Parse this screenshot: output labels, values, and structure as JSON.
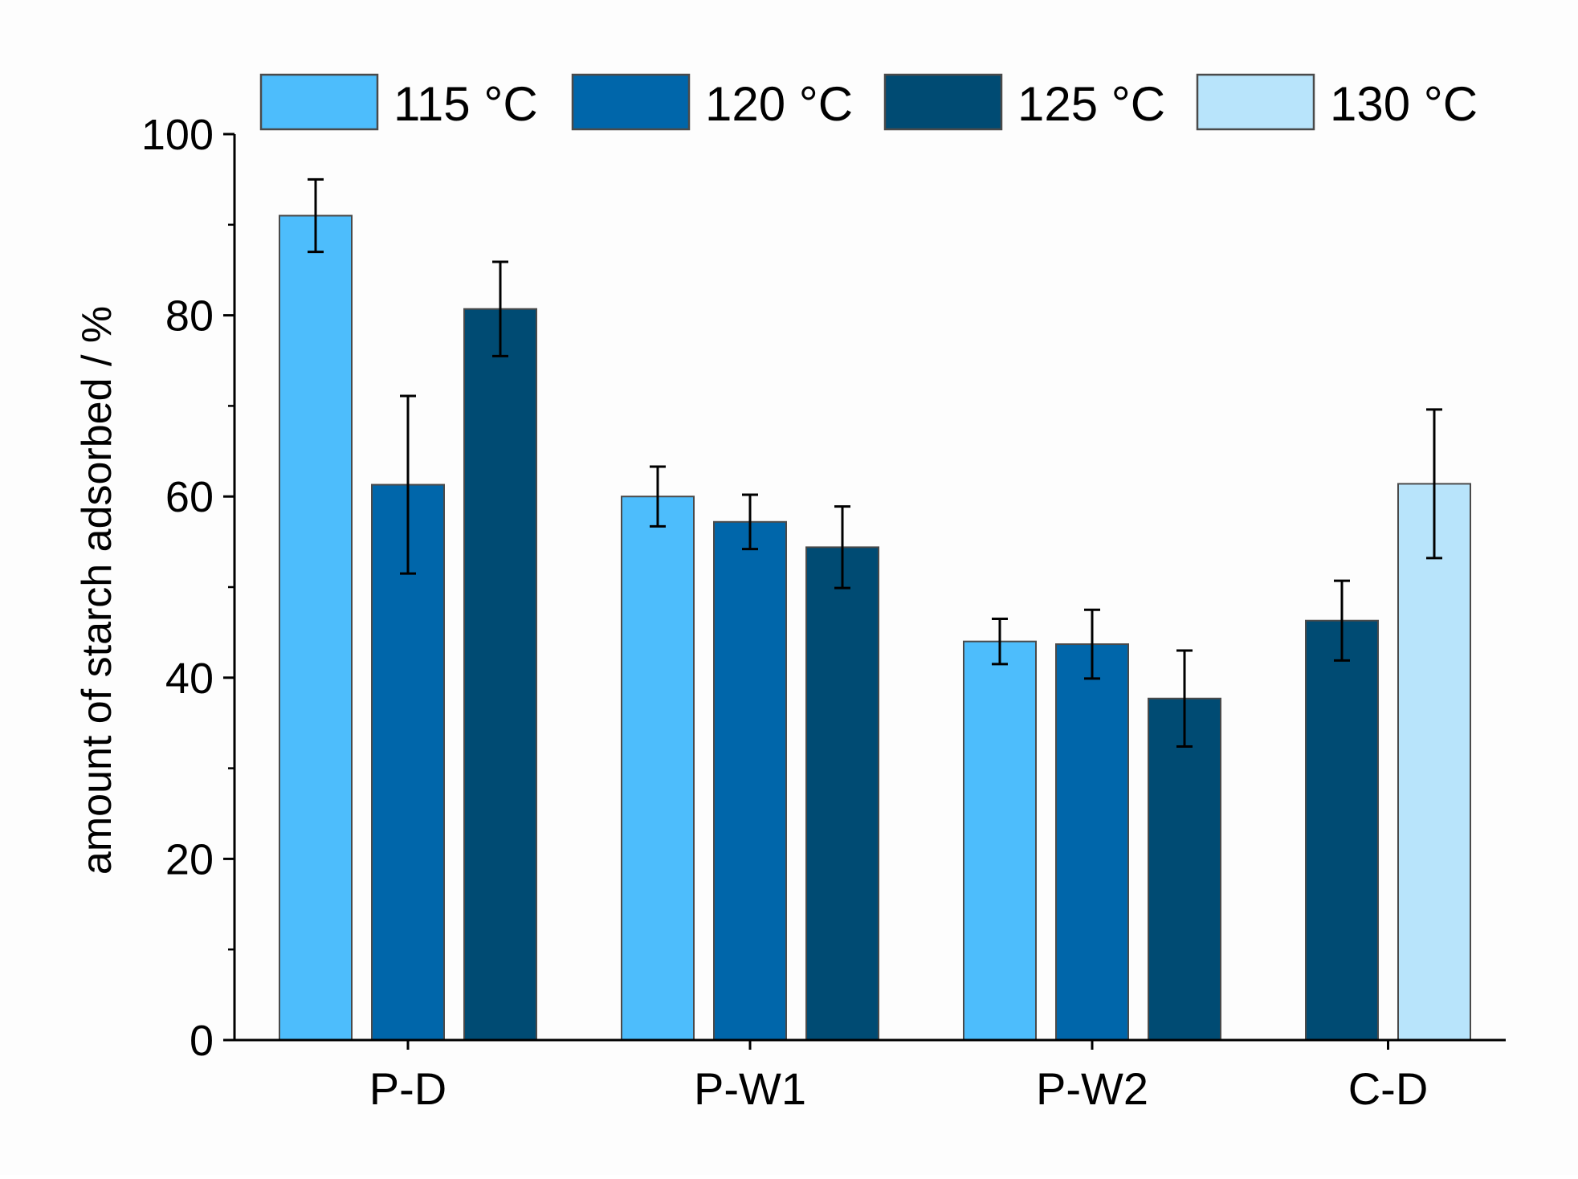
{
  "chart_data": {
    "type": "bar",
    "title": "",
    "xlabel": "",
    "ylabel": "amount of starch adsorbed / %",
    "ylim": [
      0,
      100
    ],
    "yticks": [
      0,
      20,
      40,
      60,
      80,
      100
    ],
    "categories": [
      "P-D",
      "P-W1",
      "P-W2",
      "C-D"
    ],
    "legend_position": "top",
    "grid": false,
    "series": [
      {
        "name": "115 °C",
        "color": "#4dbdfc",
        "values": [
          91.0,
          60.0,
          44.0,
          null
        ],
        "errors": [
          4.0,
          3.3,
          2.5,
          null
        ]
      },
      {
        "name": "120 °C",
        "color": "#0066aa",
        "values": [
          61.3,
          57.2,
          43.7,
          null
        ],
        "errors": [
          9.8,
          3.0,
          3.8,
          null
        ]
      },
      {
        "name": "125 °C",
        "color": "#004b73",
        "values": [
          80.7,
          54.4,
          37.7,
          46.3
        ],
        "errors": [
          5.2,
          4.5,
          5.3,
          4.4
        ]
      },
      {
        "name": "130 °C",
        "color": "#b8e4fb",
        "values": [
          null,
          null,
          null,
          61.4
        ],
        "errors": [
          null,
          null,
          null,
          8.2
        ]
      }
    ]
  }
}
